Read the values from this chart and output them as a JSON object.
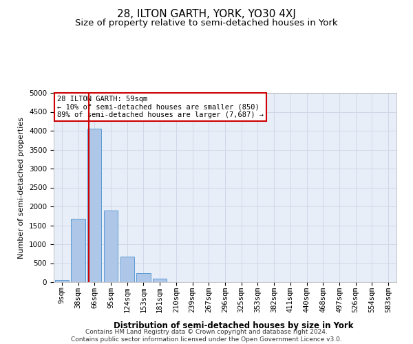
{
  "title": "28, ILTON GARTH, YORK, YO30 4XJ",
  "subtitle": "Size of property relative to semi-detached houses in York",
  "xlabel": "Distribution of semi-detached houses by size in York",
  "ylabel": "Number of semi-detached properties",
  "categories": [
    "9sqm",
    "38sqm",
    "66sqm",
    "95sqm",
    "124sqm",
    "153sqm",
    "181sqm",
    "210sqm",
    "239sqm",
    "267sqm",
    "296sqm",
    "325sqm",
    "353sqm",
    "382sqm",
    "411sqm",
    "440sqm",
    "468sqm",
    "497sqm",
    "526sqm",
    "554sqm",
    "583sqm"
  ],
  "values": [
    60,
    1680,
    4050,
    1900,
    670,
    230,
    100,
    0,
    0,
    0,
    0,
    0,
    0,
    0,
    0,
    0,
    0,
    0,
    0,
    0,
    0
  ],
  "bar_color": "#aec6e8",
  "bar_edge_color": "#5b9bd5",
  "property_line_x": 1.65,
  "property_line_color": "#cc0000",
  "annotation_text": "28 ILTON GARTH: 59sqm\n← 10% of semi-detached houses are smaller (850)\n89% of semi-detached houses are larger (7,687) →",
  "annotation_box_color": "#ffffff",
  "annotation_box_edge": "#cc0000",
  "ylim": [
    0,
    5000
  ],
  "yticks": [
    0,
    500,
    1000,
    1500,
    2000,
    2500,
    3000,
    3500,
    4000,
    4500,
    5000
  ],
  "footer": "Contains HM Land Registry data © Crown copyright and database right 2024.\nContains public sector information licensed under the Open Government Licence v3.0.",
  "background_color": "#ffffff",
  "grid_color": "#d0d8e8",
  "title_fontsize": 11,
  "subtitle_fontsize": 9.5,
  "axis_label_fontsize": 8,
  "tick_fontsize": 7.5,
  "annotation_fontsize": 7.5,
  "footer_fontsize": 6.5
}
